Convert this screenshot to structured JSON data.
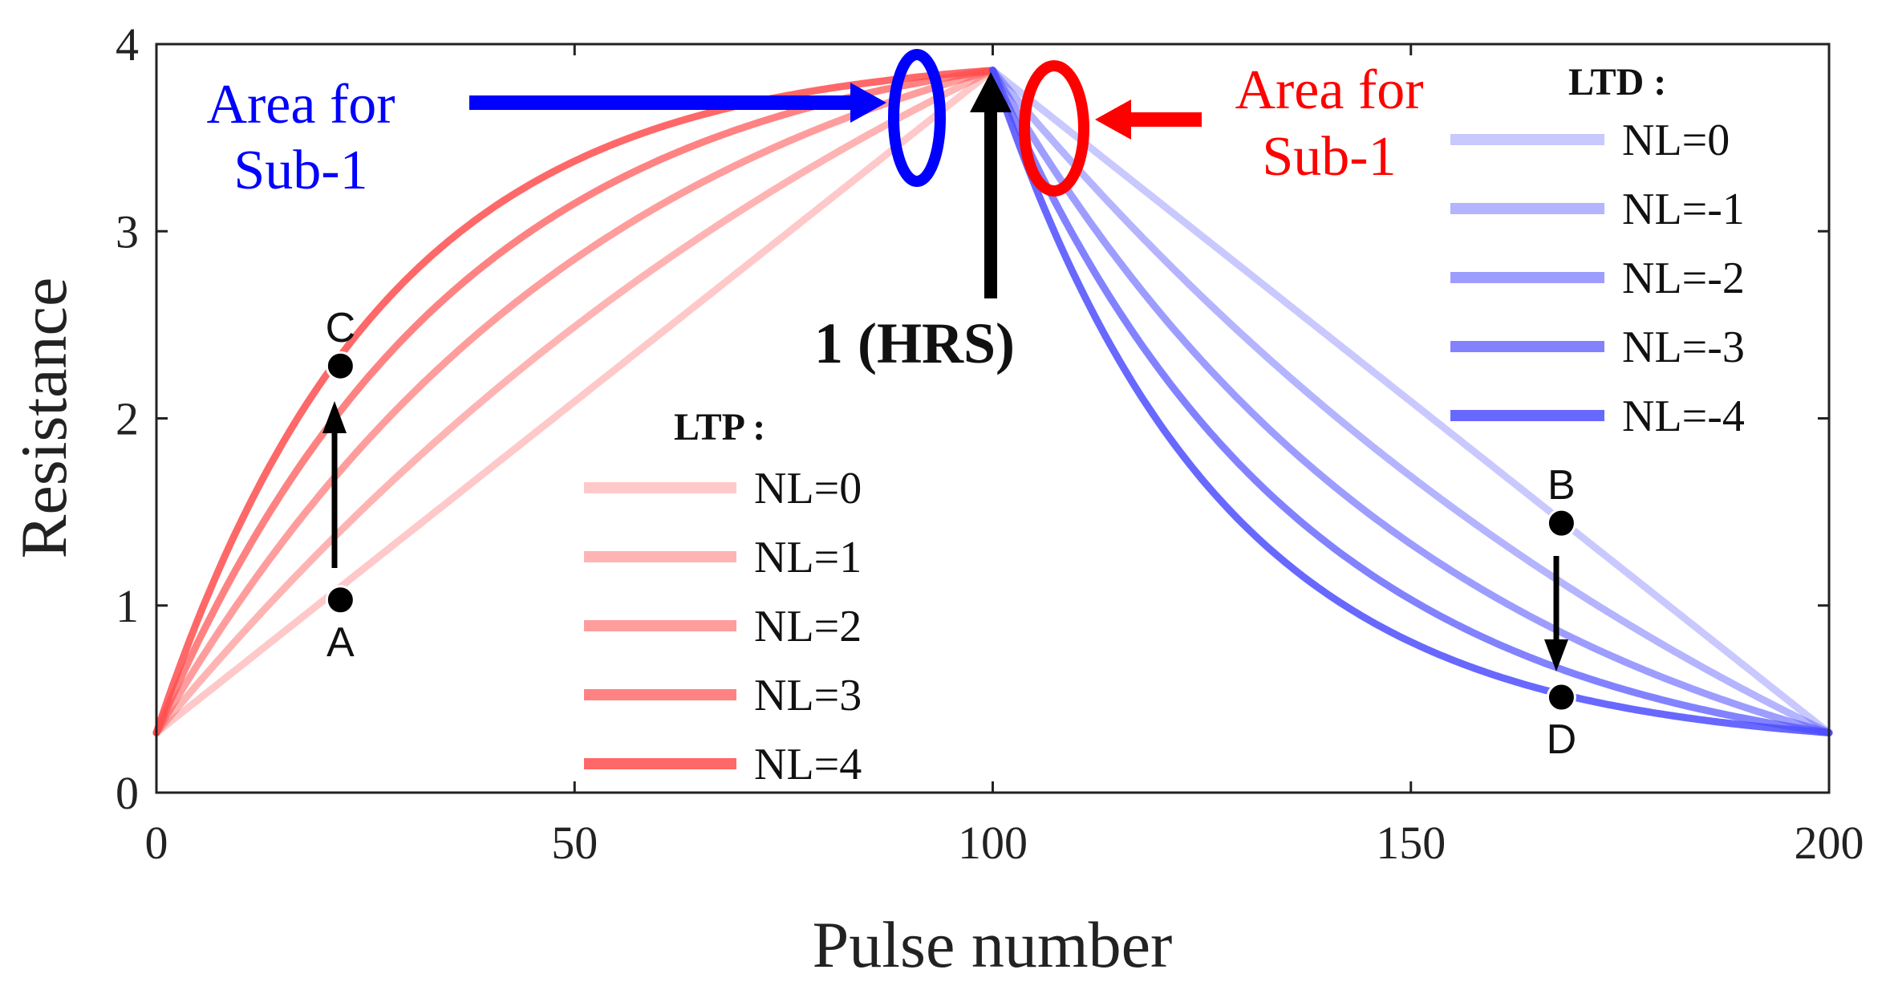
{
  "chart_data": {
    "type": "line",
    "xlabel": "Pulse number",
    "ylabel": "Resistance",
    "xlim": [
      0,
      200
    ],
    "ylim": [
      0,
      4
    ],
    "x_ticks": [
      "0",
      "50",
      "100",
      "150",
      "200"
    ],
    "y_ticks": [
      "0",
      "1",
      "2",
      "3",
      "4"
    ],
    "grid": false,
    "r_min": 0.32,
    "r_max": 3.86,
    "ltp": {
      "legend_title": "LTP :",
      "color": "#ff4d4d",
      "x_range": [
        0,
        100
      ],
      "series": [
        {
          "name": "NL=0",
          "nl": 0,
          "opacity": 0.3
        },
        {
          "name": "NL=1",
          "nl": 1,
          "opacity": 0.42
        },
        {
          "name": "NL=2",
          "nl": 2,
          "opacity": 0.55
        },
        {
          "name": "NL=3",
          "nl": 3,
          "opacity": 0.7
        },
        {
          "name": "NL=4",
          "nl": 4,
          "opacity": 0.85
        }
      ]
    },
    "ltd": {
      "legend_title": "LTD :",
      "color": "#4d4dff",
      "x_range": [
        100,
        200
      ],
      "series": [
        {
          "name": "NL=0",
          "nl": 0,
          "opacity": 0.3
        },
        {
          "name": "NL=-1",
          "nl": -1,
          "opacity": 0.42
        },
        {
          "name": "NL=-2",
          "nl": -2,
          "opacity": 0.55
        },
        {
          "name": "NL=-3",
          "nl": -3,
          "opacity": 0.7
        },
        {
          "name": "NL=-4",
          "nl": -4,
          "opacity": 0.85
        }
      ]
    },
    "points": [
      {
        "label": "A",
        "x": 22,
        "y": 1.03
      },
      {
        "label": "C",
        "x": 22,
        "y": 2.28
      },
      {
        "label": "B",
        "x": 168,
        "y": 1.44
      },
      {
        "label": "D",
        "x": 168,
        "y": 0.51
      }
    ],
    "annotations": {
      "blue_area": {
        "line1": "Area for",
        "line2": "Sub-1",
        "color": "#0000ff"
      },
      "red_area": {
        "line1": "Area for",
        "line2": "Sub-1",
        "color": "#ff0000"
      },
      "hrs": {
        "label": "1 (HRS)",
        "x": 100
      }
    }
  }
}
